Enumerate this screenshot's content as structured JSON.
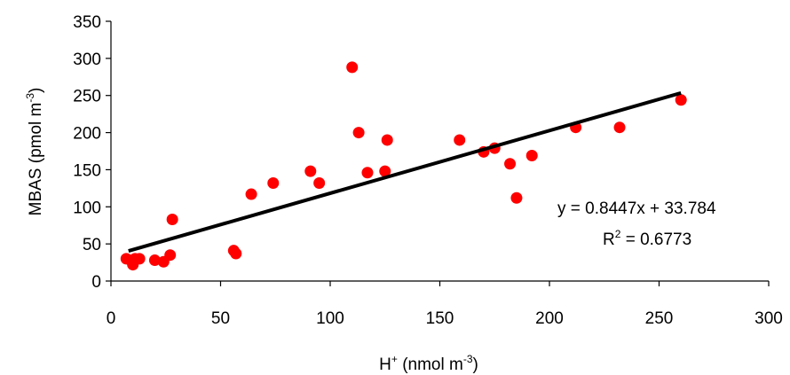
{
  "chart_data": {
    "type": "scatter",
    "title": "",
    "xlabel": {
      "base": "H",
      "sup": "+",
      "rest": " (nmol m",
      "rest_sup": "-3",
      "close": ")"
    },
    "ylabel": {
      "base": "MBAS (pmol m",
      "sup": "-3",
      "close": ")"
    },
    "xlim": [
      0,
      300
    ],
    "ylim": [
      0,
      350
    ],
    "xticks": [
      0,
      50,
      100,
      150,
      200,
      250,
      300
    ],
    "yticks": [
      0,
      50,
      100,
      150,
      200,
      250,
      300,
      350
    ],
    "grid": false,
    "legend": "none",
    "marker_color": "#ff0000",
    "trendline_color": "#000000",
    "points": [
      [
        7,
        30
      ],
      [
        9,
        28
      ],
      [
        10,
        22
      ],
      [
        11,
        30
      ],
      [
        13,
        30
      ],
      [
        20,
        28
      ],
      [
        24,
        26
      ],
      [
        27,
        35
      ],
      [
        28,
        83
      ],
      [
        56,
        41
      ],
      [
        57,
        37
      ],
      [
        64,
        117
      ],
      [
        74,
        132
      ],
      [
        91,
        148
      ],
      [
        95,
        132
      ],
      [
        110,
        288
      ],
      [
        113,
        200
      ],
      [
        117,
        146
      ],
      [
        125,
        148
      ],
      [
        126,
        190
      ],
      [
        159,
        190
      ],
      [
        170,
        174
      ],
      [
        175,
        179
      ],
      [
        182,
        158
      ],
      [
        185,
        112
      ],
      [
        192,
        169
      ],
      [
        212,
        207
      ],
      [
        232,
        207
      ],
      [
        260,
        244
      ]
    ],
    "trendline": {
      "slope": 0.8447,
      "intercept": 33.784,
      "x_range": [
        8,
        260
      ],
      "equation_text": "y = 0.8447x + 33.784",
      "r2_label": "R",
      "r2_sup": "2",
      "r2_value": " = 0.6773"
    }
  }
}
